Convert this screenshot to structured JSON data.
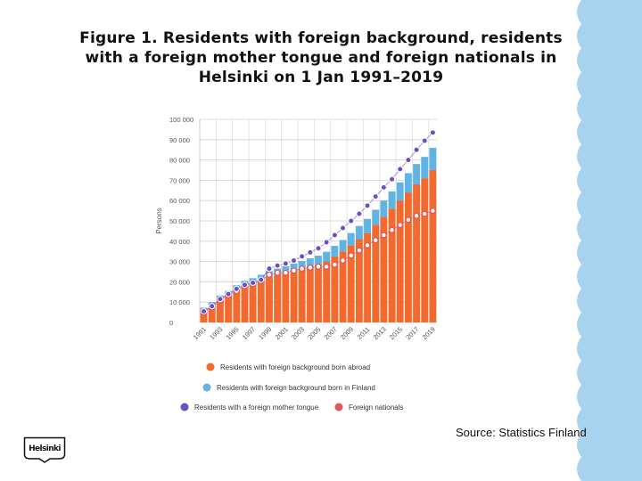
{
  "title_lines": [
    "Figure 1. Residents with foreign background, residents",
    "with a foreign mother tongue and foreign nationals in",
    "Helsinki on 1 Jan 1991–2019"
  ],
  "source": "Source: Statistics Finland",
  "logo_text": "Helsinki",
  "colors": {
    "born_abroad": "#f26a2e",
    "born_finland": "#5fb4e4",
    "mother_tongue": "#6a4fc4",
    "foreign_nationals": "#e2555a",
    "edge": "#a7d3ee"
  },
  "chart_data": {
    "type": "bar",
    "stacked": true,
    "x": [
      1991,
      1992,
      1993,
      1994,
      1995,
      1996,
      1997,
      1998,
      1999,
      2000,
      2001,
      2002,
      2003,
      2004,
      2005,
      2006,
      2007,
      2008,
      2009,
      2010,
      2011,
      2012,
      2013,
      2014,
      2015,
      2016,
      2017,
      2018,
      2019
    ],
    "x_tick_labels": [
      "1991",
      "1993",
      "1995",
      "1997",
      "1999",
      "2001",
      "2003",
      "2005",
      "2007",
      "2009",
      "2011",
      "2013",
      "2015",
      "2017",
      "2019"
    ],
    "ylabel": "Persons",
    "ylim": [
      0,
      100000
    ],
    "y_ticks": [
      0,
      10000,
      20000,
      30000,
      40000,
      50000,
      60000,
      70000,
      80000,
      90000,
      100000
    ],
    "y_tick_labels": [
      "0",
      "10 000",
      "20 000",
      "30 000",
      "40 000",
      "50 000",
      "60 000",
      "70 000",
      "80 000",
      "90 000",
      "100 000"
    ],
    "grid": true,
    "legend_position": "bottom",
    "series": [
      {
        "name": "Residents with foreign background born abroad",
        "kind": "bar",
        "values": [
          6500,
          9000,
          12000,
          14000,
          16500,
          18500,
          19500,
          21000,
          22500,
          23500,
          24500,
          25500,
          26500,
          27500,
          28500,
          30000,
          32500,
          35000,
          38000,
          41000,
          44000,
          48000,
          52000,
          56000,
          60000,
          64000,
          68000,
          71000,
          75000
        ]
      },
      {
        "name": "Residents with foreign background born in Finland",
        "kind": "bar",
        "values": [
          800,
          1000,
          1300,
          1500,
          1800,
          2000,
          2300,
          2500,
          2800,
          3000,
          3200,
          3500,
          3800,
          4100,
          4400,
          4800,
          5200,
          5600,
          6000,
          6500,
          7000,
          7500,
          8000,
          8500,
          9000,
          9500,
          10000,
          10500,
          11000
        ]
      },
      {
        "name": "Residents with a foreign mother tongue",
        "kind": "point",
        "values": [
          5500,
          8000,
          11500,
          14000,
          16500,
          18500,
          19500,
          21000,
          26500,
          28000,
          29000,
          30500,
          32500,
          34500,
          36500,
          39500,
          43000,
          46500,
          50000,
          53500,
          57500,
          62000,
          66500,
          70500,
          75500,
          80000,
          85000,
          89500,
          93500
        ]
      },
      {
        "name": "Foreign nationals",
        "kind": "point",
        "values": [
          5000,
          7500,
          11000,
          13500,
          15500,
          18000,
          19000,
          20500,
          23500,
          24500,
          24500,
          25500,
          26500,
          27000,
          27500,
          27500,
          28500,
          30500,
          33000,
          35500,
          38000,
          40500,
          43000,
          45500,
          48000,
          50500,
          52500,
          53500,
          55000
        ]
      }
    ]
  }
}
